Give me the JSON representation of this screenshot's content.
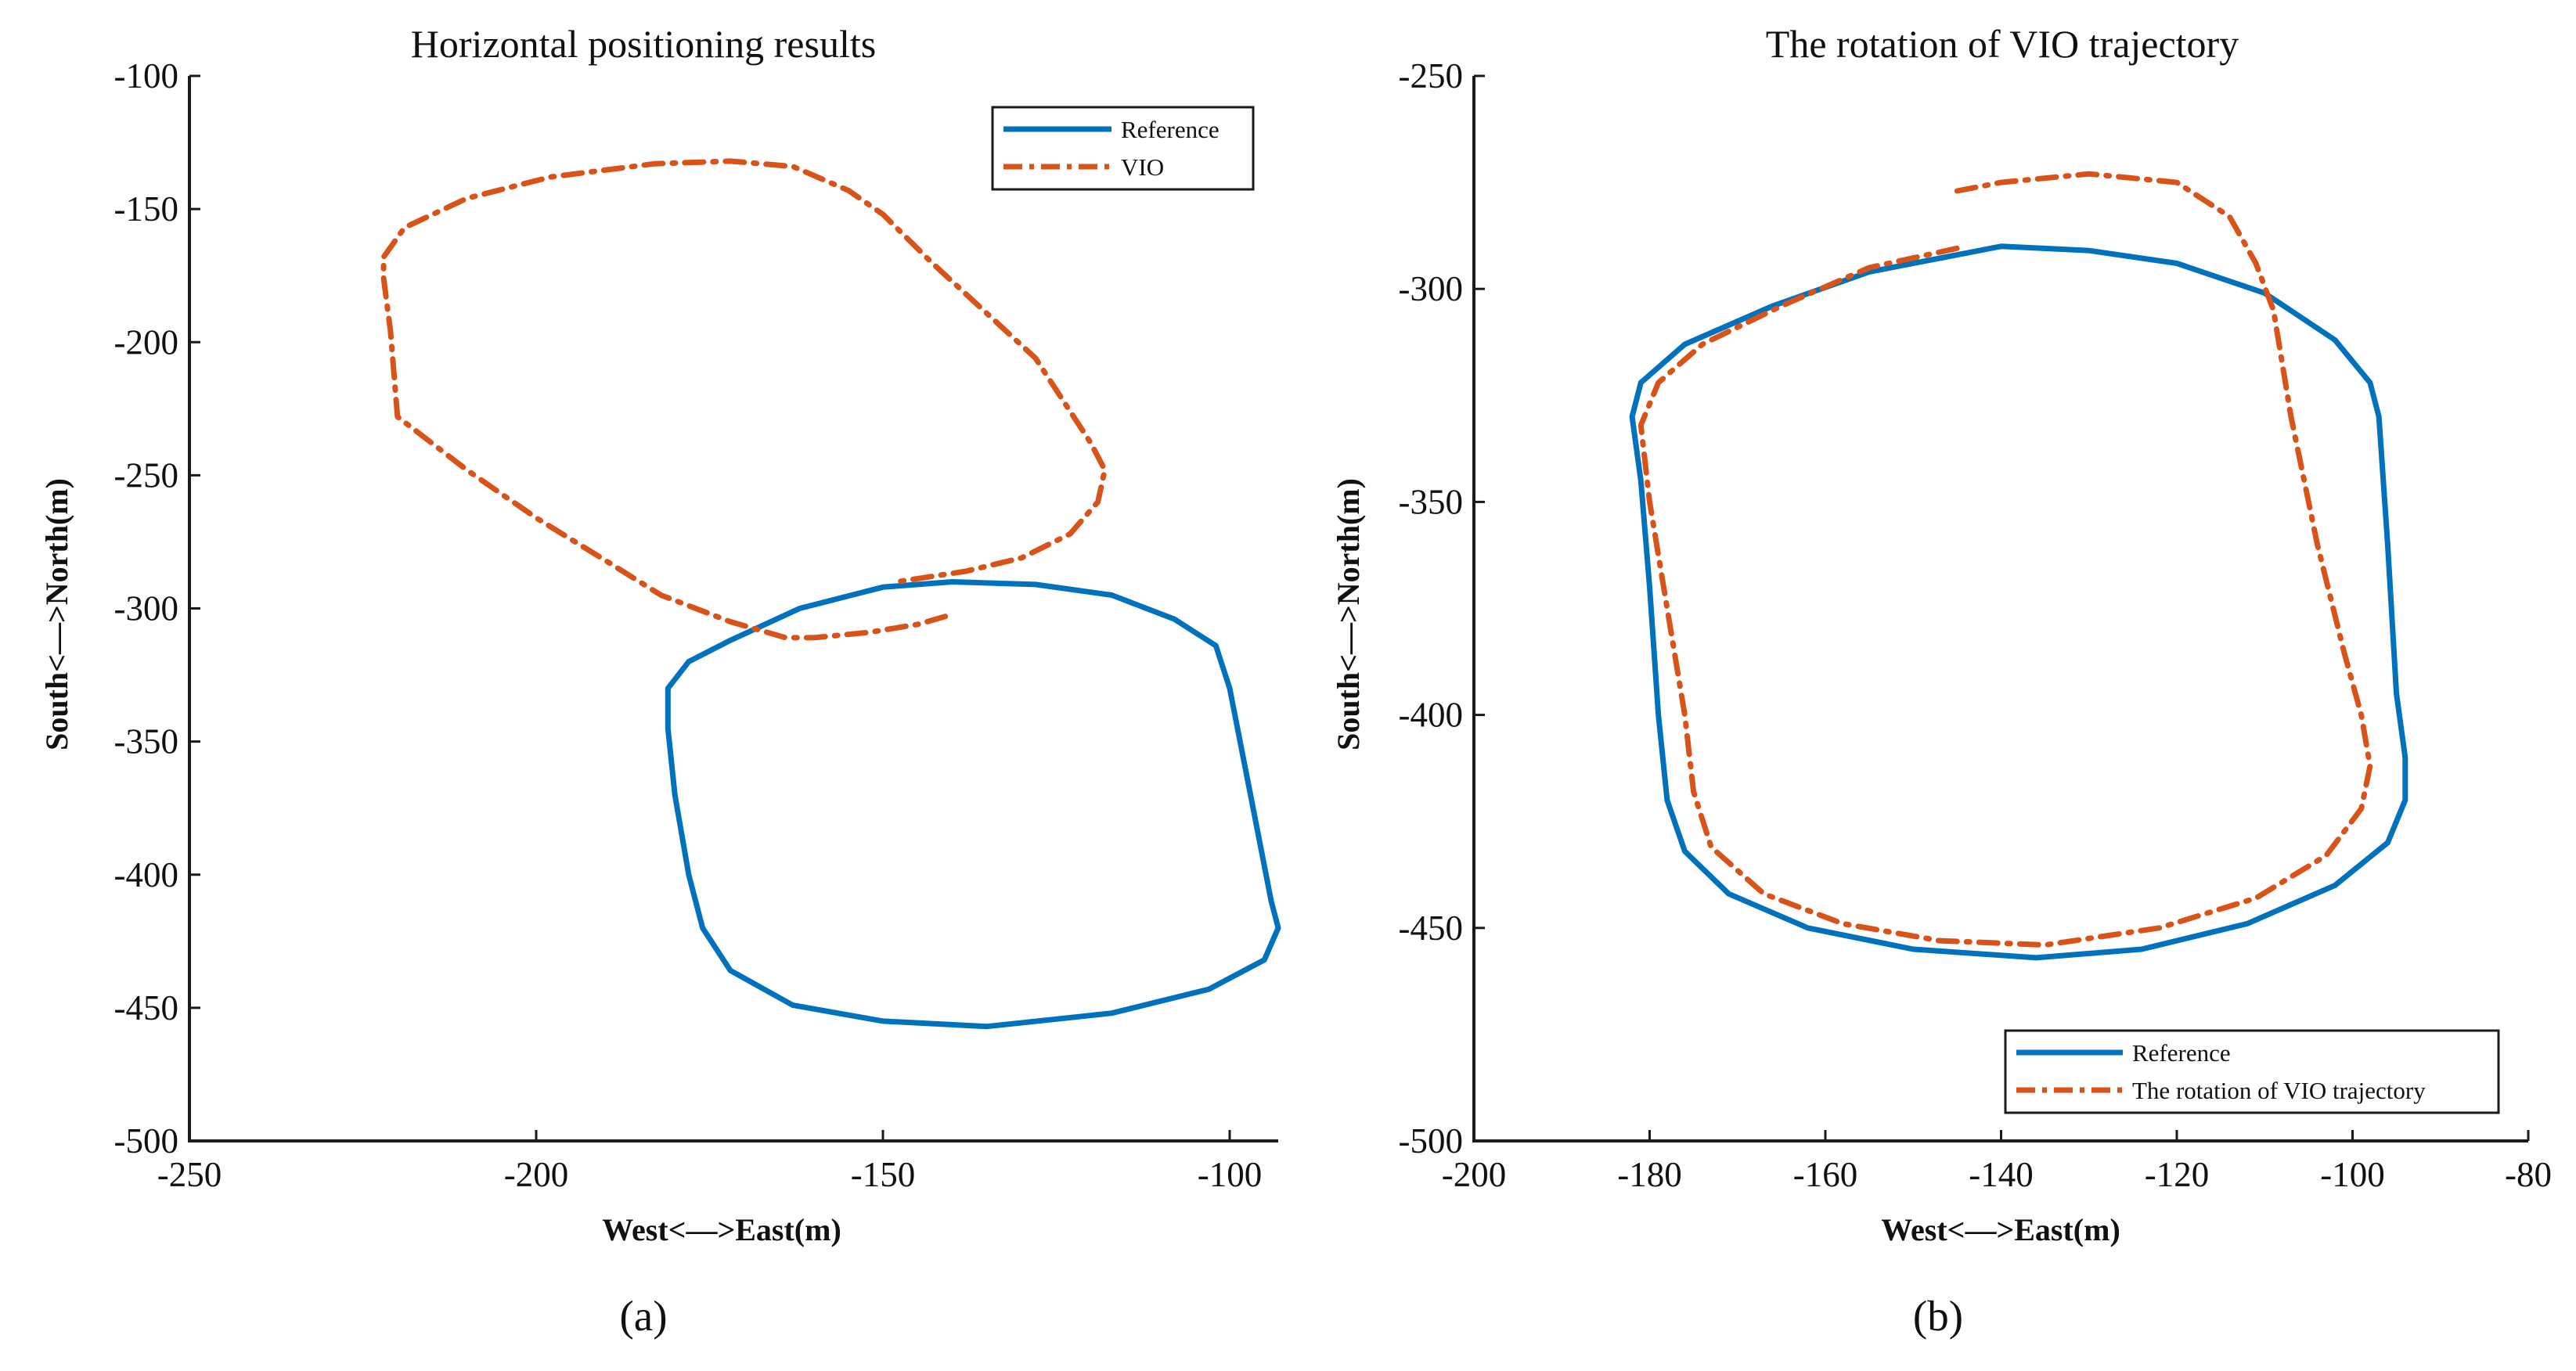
{
  "figure": {
    "caption_a": "(a)",
    "caption_b": "(b)"
  },
  "colors": {
    "reference": "#0072BD",
    "vio": "#D95319",
    "axis": "#1a1a1a"
  },
  "chart_data": [
    {
      "type": "line",
      "title": "Horizontal positioning results",
      "xlabel": "West<—>East(m)",
      "ylabel": "South<—>North(m)",
      "xlim": [
        -250,
        -93
      ],
      "ylim": [
        -500,
        -100
      ],
      "xticks": [
        -250,
        -200,
        -150,
        -100
      ],
      "yticks": [
        -100,
        -150,
        -200,
        -250,
        -300,
        -350,
        -400,
        -450,
        -500
      ],
      "tick_labels_x": [
        "-250",
        "-200",
        "-150",
        "-100"
      ],
      "tick_labels_y": [
        "-100",
        "-150",
        "-200",
        "-250",
        "-300",
        "-350",
        "-400",
        "-450",
        "-500"
      ],
      "legend": {
        "position": "top-right",
        "entries": [
          "Reference",
          "VIO"
        ]
      },
      "series": [
        {
          "name": "Reference",
          "style": "solid",
          "points": [
            [
              -140,
              -290
            ],
            [
              -128,
              -291
            ],
            [
              -117,
              -295
            ],
            [
              -108,
              -304
            ],
            [
              -102,
              -314
            ],
            [
              -100,
              -330
            ],
            [
              -97,
              -370
            ],
            [
              -94,
              -410
            ],
            [
              -93,
              -420
            ],
            [
              -95,
              -432
            ],
            [
              -103,
              -443
            ],
            [
              -117,
              -452
            ],
            [
              -135,
              -457
            ],
            [
              -150,
              -455
            ],
            [
              -163,
              -449
            ],
            [
              -172,
              -436
            ],
            [
              -176,
              -420
            ],
            [
              -178,
              -400
            ],
            [
              -180,
              -370
            ],
            [
              -181,
              -345
            ],
            [
              -181,
              -330
            ],
            [
              -178,
              -320
            ],
            [
              -172,
              -312
            ],
            [
              -162,
              -300
            ],
            [
              -150,
              -292
            ],
            [
              -140,
              -290
            ]
          ]
        },
        {
          "name": "VIO",
          "style": "dashdot",
          "points": [
            [
              -141,
              -303
            ],
            [
              -145,
              -306
            ],
            [
              -152,
              -309
            ],
            [
              -160,
              -311
            ],
            [
              -164,
              -311
            ],
            [
              -172,
              -305
            ],
            [
              -182,
              -295
            ],
            [
              -190,
              -282
            ],
            [
              -200,
              -266
            ],
            [
              -210,
              -248
            ],
            [
              -220,
              -228
            ],
            [
              -221,
              -196
            ],
            [
              -222,
              -176
            ],
            [
              -222,
              -168
            ],
            [
              -219,
              -157
            ],
            [
              -210,
              -146
            ],
            [
              -198,
              -138
            ],
            [
              -183,
              -133
            ],
            [
              -172,
              -132
            ],
            [
              -163,
              -134
            ],
            [
              -155,
              -143
            ],
            [
              -150,
              -152
            ],
            [
              -143,
              -170
            ],
            [
              -128,
              -206
            ],
            [
              -120,
              -238
            ],
            [
              -118,
              -248
            ],
            [
              -119,
              -260
            ],
            [
              -123,
              -272
            ],
            [
              -130,
              -281
            ],
            [
              -138,
              -286
            ],
            [
              -148,
              -290
            ]
          ]
        }
      ]
    },
    {
      "type": "line",
      "title": "The rotation of VIO trajectory",
      "xlabel": "West<—>East(m)",
      "ylabel": "South<—>North(m)",
      "xlim": [
        -200,
        -80
      ],
      "ylim": [
        -500,
        -250
      ],
      "xticks": [
        -200,
        -180,
        -160,
        -140,
        -120,
        -100,
        -80
      ],
      "yticks": [
        -250,
        -300,
        -350,
        -400,
        -450,
        -500
      ],
      "tick_labels_x": [
        "-200",
        "-180",
        "-160",
        "-140",
        "-120",
        "-100",
        "-80"
      ],
      "tick_labels_y": [
        "-250",
        "-300",
        "-350",
        "-400",
        "-450",
        "-500"
      ],
      "legend": {
        "position": "bottom-right",
        "entries": [
          "Reference",
          "The rotation of VIO trajectory"
        ]
      },
      "series": [
        {
          "name": "Reference",
          "style": "solid",
          "points": [
            [
              -140,
              -290
            ],
            [
              -130,
              -291
            ],
            [
              -120,
              -294
            ],
            [
              -110,
              -301
            ],
            [
              -102,
              -312
            ],
            [
              -98,
              -322
            ],
            [
              -97,
              -330
            ],
            [
              -96,
              -360
            ],
            [
              -95,
              -395
            ],
            [
              -94,
              -410
            ],
            [
              -94,
              -420
            ],
            [
              -96,
              -430
            ],
            [
              -102,
              -440
            ],
            [
              -112,
              -449
            ],
            [
              -124,
              -455
            ],
            [
              -136,
              -457
            ],
            [
              -150,
              -455
            ],
            [
              -162,
              -450
            ],
            [
              -171,
              -442
            ],
            [
              -176,
              -432
            ],
            [
              -178,
              -420
            ],
            [
              -179,
              -400
            ],
            [
              -180,
              -370
            ],
            [
              -181,
              -345
            ],
            [
              -182,
              -330
            ],
            [
              -181,
              -322
            ],
            [
              -176,
              -313
            ],
            [
              -166,
              -304
            ],
            [
              -155,
              -296
            ],
            [
              -140,
              -290
            ]
          ]
        },
        {
          "name": "The rotation of VIO trajectory",
          "style": "dashdot",
          "points": [
            [
              -145,
              -277
            ],
            [
              -140,
              -275
            ],
            [
              -130,
              -273
            ],
            [
              -120,
              -275
            ],
            [
              -114,
              -283
            ],
            [
              -111,
              -294
            ],
            [
              -109,
              -305
            ],
            [
              -107,
              -330
            ],
            [
              -104,
              -360
            ],
            [
              -101,
              -385
            ],
            [
              -99,
              -400
            ],
            [
              -98,
              -412
            ],
            [
              -99,
              -422
            ],
            [
              -103,
              -433
            ],
            [
              -111,
              -443
            ],
            [
              -122,
              -450
            ],
            [
              -135,
              -454
            ],
            [
              -147,
              -453
            ],
            [
              -158,
              -449
            ],
            [
              -167,
              -442
            ],
            [
              -173,
              -431
            ],
            [
              -175,
              -418
            ],
            [
              -176,
              -400
            ],
            [
              -178,
              -375
            ],
            [
              -180,
              -350
            ],
            [
              -181,
              -332
            ],
            [
              -179,
              -322
            ],
            [
              -174,
              -313
            ],
            [
              -165,
              -304
            ],
            [
              -155,
              -295
            ],
            [
              -144,
              -290
            ]
          ]
        }
      ]
    }
  ]
}
